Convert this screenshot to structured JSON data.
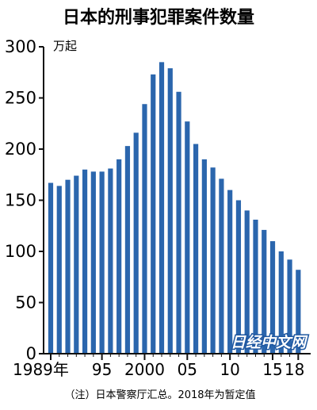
{
  "chart_data": {
    "type": "bar",
    "title": "日本的刑事犯罪案件数量",
    "unit_label": "万起",
    "note": "（注）日本警察厅汇总。2018年为暂定值",
    "watermark": "日经中文网",
    "bar_color": "#2b66ad",
    "years": [
      1989,
      1990,
      1991,
      1992,
      1993,
      1994,
      1995,
      1996,
      1997,
      1998,
      1999,
      2000,
      2001,
      2002,
      2003,
      2004,
      2005,
      2006,
      2007,
      2008,
      2009,
      2010,
      2011,
      2012,
      2013,
      2014,
      2015,
      2016,
      2017,
      2018
    ],
    "values": [
      167,
      164,
      170,
      174,
      180,
      178,
      178,
      181,
      190,
      203,
      216,
      244,
      273,
      285,
      279,
      256,
      227,
      205,
      190,
      182,
      171,
      160,
      150,
      140,
      131,
      121,
      110,
      100,
      92,
      82
    ],
    "ylim": [
      0,
      300
    ],
    "yticks": [
      0,
      50,
      100,
      150,
      200,
      250,
      300
    ],
    "xtick_labels": [
      {
        "year": 1989,
        "label": "1989年"
      },
      {
        "year": 1995,
        "label": "95"
      },
      {
        "year": 2000,
        "label": "2000"
      },
      {
        "year": 2005,
        "label": "05"
      },
      {
        "year": 2010,
        "label": "10"
      },
      {
        "year": 2015,
        "label": "15"
      },
      {
        "year": 2018,
        "label": "18"
      }
    ]
  }
}
